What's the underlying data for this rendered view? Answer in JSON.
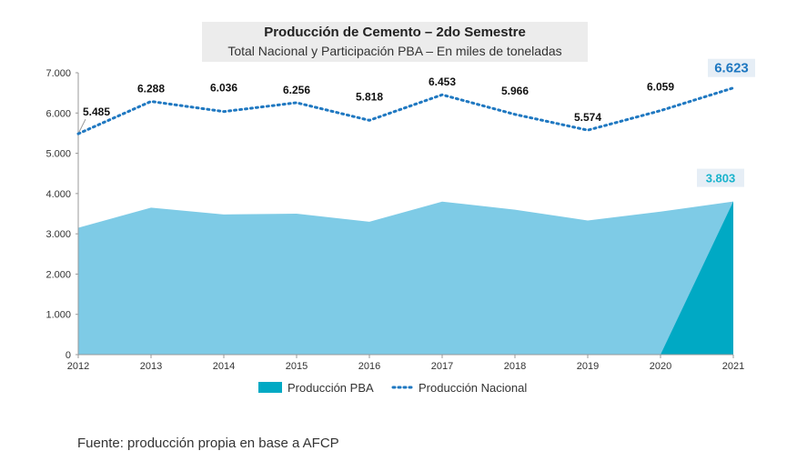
{
  "chart_data": {
    "type": "area",
    "title": "Producción de Cemento – 2do Semestre",
    "subtitle": "Total Nacional y Participación PBA – En miles de toneladas",
    "x": [
      "2012",
      "2013",
      "2014",
      "2015",
      "2016",
      "2017",
      "2018",
      "2019",
      "2020",
      "2021"
    ],
    "ylim": [
      0,
      7000
    ],
    "yticks": [
      "0",
      "1.000",
      "2.000",
      "3.000",
      "4.000",
      "5.000",
      "6.000",
      "7.000"
    ],
    "ytick_values": [
      0,
      1000,
      2000,
      3000,
      4000,
      5000,
      6000,
      7000
    ],
    "grid": false,
    "legend_position": "bottom",
    "series": [
      {
        "name": "Producción PBA",
        "style": "area",
        "values": [
          3150,
          3650,
          3480,
          3500,
          3300,
          3800,
          3600,
          3330,
          3550,
          3803
        ],
        "labels": [
          "",
          "",
          "",
          "",
          "",
          "",
          "",
          "",
          "",
          "3.803"
        ],
        "color_light": "#7ecbe6",
        "color_dark": "#00a9c4"
      },
      {
        "name": "Producción Nacional",
        "style": "dotted-line",
        "values": [
          5485,
          6288,
          6036,
          6256,
          5818,
          6453,
          5966,
          5574,
          6059,
          6623
        ],
        "labels": [
          "5.485",
          "6.288",
          "6.036",
          "6.256",
          "5.818",
          "6.453",
          "5.966",
          "5.574",
          "6.059",
          "6.623"
        ],
        "color": "#1f78c1"
      }
    ]
  },
  "source_note": "Fuente: producción propia en base a AFCP"
}
